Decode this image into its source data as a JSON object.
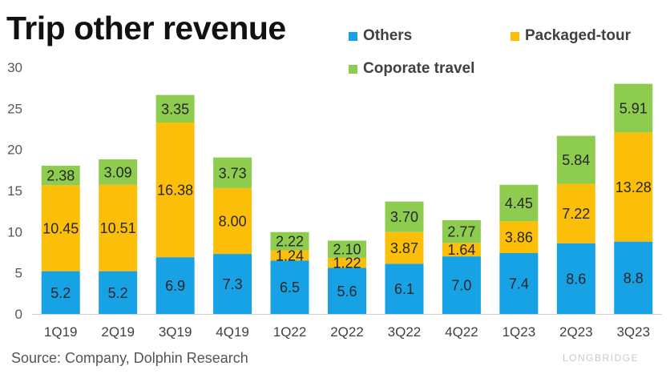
{
  "title": "Trip other revenue",
  "source": "Source: Company, Dolphin Research",
  "watermark": "LONGBRIDGE",
  "chart_data": {
    "type": "bar",
    "stacked": true,
    "title": "Trip other revenue",
    "xlabel": "",
    "ylabel": "",
    "ylim": [
      0,
      30
    ],
    "yticks": [
      0,
      5,
      10,
      15,
      20,
      25,
      30
    ],
    "grid": false,
    "legend_position": "top-right",
    "categories": [
      "1Q19",
      "2Q19",
      "3Q19",
      "4Q19",
      "1Q22",
      "2Q22",
      "3Q22",
      "4Q22",
      "1Q23",
      "2Q23",
      "3Q23"
    ],
    "series": [
      {
        "name": "Others",
        "color": "#17a2e6",
        "values": [
          5.2,
          5.2,
          6.9,
          7.3,
          6.5,
          5.6,
          6.1,
          7.0,
          7.4,
          8.6,
          8.8
        ],
        "labels": [
          "5.2",
          "5.2",
          "6.9",
          "7.3",
          "6.5",
          "5.6",
          "6.1",
          "7.0",
          "7.4",
          "8.6",
          "8.8"
        ]
      },
      {
        "name": "Packaged-tour",
        "color": "#fbbf0a",
        "values": [
          10.45,
          10.51,
          16.38,
          8.0,
          1.24,
          1.22,
          3.87,
          1.64,
          3.86,
          7.22,
          13.28
        ],
        "labels": [
          "10.45",
          "10.51",
          "16.38",
          "8.00",
          "1.24",
          "1.22",
          "3.87",
          "1.64",
          "3.86",
          "7.22",
          "13.28"
        ]
      },
      {
        "name": "Coporate travel",
        "color": "#8dcc4e",
        "values": [
          2.38,
          3.09,
          3.35,
          3.73,
          2.22,
          2.1,
          3.7,
          2.77,
          4.45,
          5.84,
          5.91
        ],
        "labels": [
          "2.38",
          "3.09",
          "3.35",
          "3.73",
          "2.22",
          "2.10",
          "3.70",
          "2.77",
          "4.45",
          "5.84",
          "5.91"
        ]
      }
    ]
  }
}
